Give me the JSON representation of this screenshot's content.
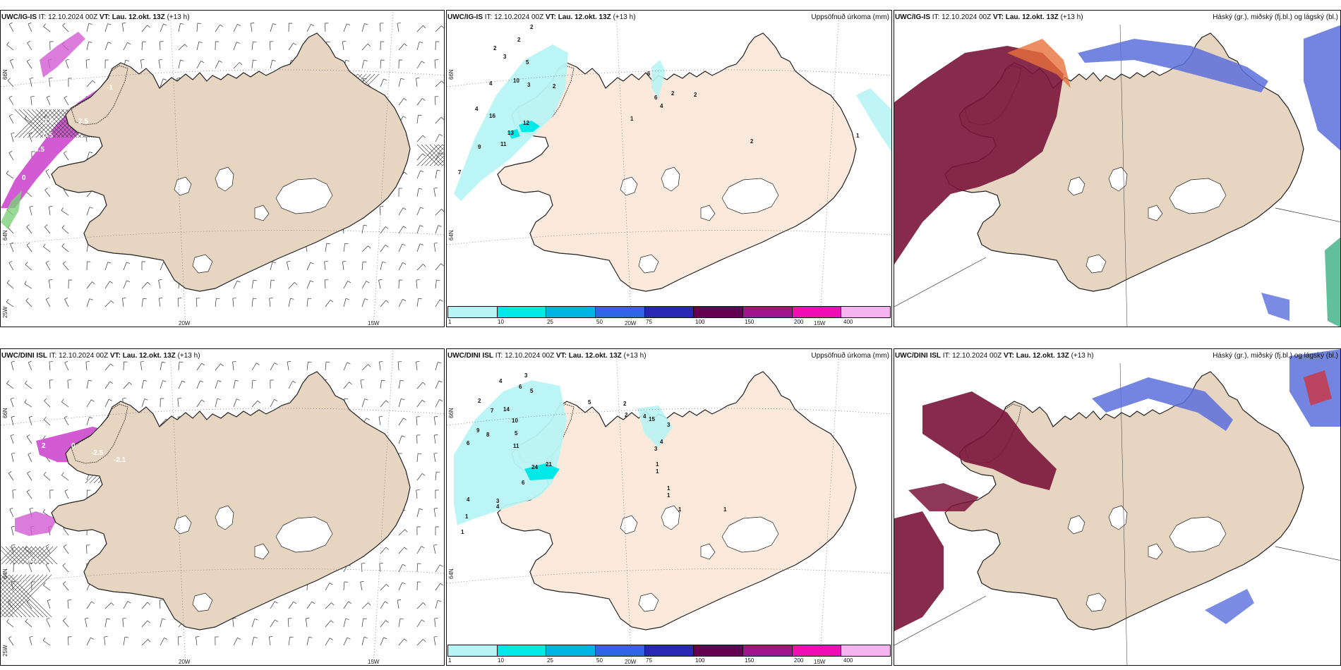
{
  "panels": [
    {
      "model": "UWC/IG-IS",
      "it_label": "IT:",
      "it": "12.10.2024 00Z",
      "vt_label": "VT:",
      "vt": "Lau. 12.okt. 13Z",
      "lead": "(+13 h)",
      "title_right": "",
      "type": "wind"
    },
    {
      "model": "UWC/IG-IS",
      "it_label": "IT:",
      "it": "12.10.2024 00Z",
      "vt_label": "VT:",
      "vt": "Lau. 12.okt. 13Z",
      "lead": "(+13 h)",
      "title_right": "Uppsöfnuð úrkoma (mm)",
      "type": "precip"
    },
    {
      "model": "UWC/IG-IS",
      "it_label": "IT:",
      "it": "12.10.2024 00Z",
      "vt_label": "VT:",
      "vt": "Lau. 12.okt. 13Z",
      "lead": "(+13 h)",
      "title_right": "Háský (gr.), miðský (fj.bl.) og lágský (bl.)",
      "type": "cloud"
    },
    {
      "model": "UWC/DINI ISL",
      "it_label": "IT:",
      "it": "12.10.2024 00Z",
      "vt_label": "VT:",
      "vt": "Lau. 12.okt. 13Z",
      "lead": "(+13 h)",
      "title_right": "",
      "type": "wind"
    },
    {
      "model": "UWC/DINI ISL",
      "it_label": "IT:",
      "it": "12.10.2024 00Z",
      "vt_label": "VT:",
      "vt": "Lau. 12.okt. 13Z",
      "lead": "(+13 h)",
      "title_right": "Uppsöfnuð úrkoma (mm)",
      "type": "precip"
    },
    {
      "model": "UWC/DINI ISL",
      "it_label": "IT:",
      "it": "12.10.2024 00Z",
      "vt_label": "VT:",
      "vt": "Lau. 12.okt. 13Z",
      "lead": "(+13 h)",
      "title_right": "Háský (gr.), miðský (fj.bl.) og lágský (bl.)",
      "type": "cloud"
    }
  ],
  "axis_labels": {
    "lat66": "66N",
    "lat64": "64N",
    "lon25": "25W",
    "lon20": "20W",
    "lon15": "15W"
  },
  "colorbar": {
    "labels": [
      "1",
      "10",
      "25",
      "50",
      "75",
      "100",
      "150",
      "200",
      "400"
    ],
    "colors": [
      "#b8f4f4",
      "#00e8e8",
      "#00b4e6",
      "#3264e6",
      "#2828b4",
      "#640050",
      "#a0148c",
      "#f00fb4",
      "#f5b4f0"
    ]
  },
  "precip_labels_top": [
    "2",
    "2",
    "2",
    "3",
    "5",
    "4",
    "10",
    "3",
    "2",
    "4",
    "16",
    "12",
    "13",
    "11",
    "9",
    "7",
    "6",
    "6",
    "2",
    "2",
    "4",
    "2",
    "1",
    "1",
    "2"
  ],
  "precip_labels_bottom": [
    "3",
    "4",
    "6",
    "5",
    "2",
    "7",
    "14",
    "10",
    "9",
    "8",
    "5",
    "11",
    "6",
    "24",
    "21",
    "6",
    "4",
    "1",
    "4",
    "3",
    "1",
    "5",
    "2",
    "2",
    "4",
    "15",
    "3",
    "4",
    "3",
    "1",
    "1",
    "1",
    "1",
    "1",
    "1"
  ],
  "wind_labels_top": [
    "-1",
    "0.5",
    "0.5",
    "-1.5",
    "2.5",
    "0"
  ],
  "wind_labels_bottom": [
    "2",
    "0",
    "-2.5",
    "-2.1",
    "-1.1",
    "2"
  ],
  "colors": {
    "land": "#e6d5c0",
    "land_precip": "#fbeadb",
    "ice": "#ffffff",
    "coast": "#222222",
    "precip_light": "#b8f4f4",
    "precip_mid": "#00e8e8",
    "wind_pink": "#d25ad2",
    "high_cloud": "#7a1438",
    "mid_cloud": "#5a6edc",
    "low_cloud": "#46b48c"
  }
}
